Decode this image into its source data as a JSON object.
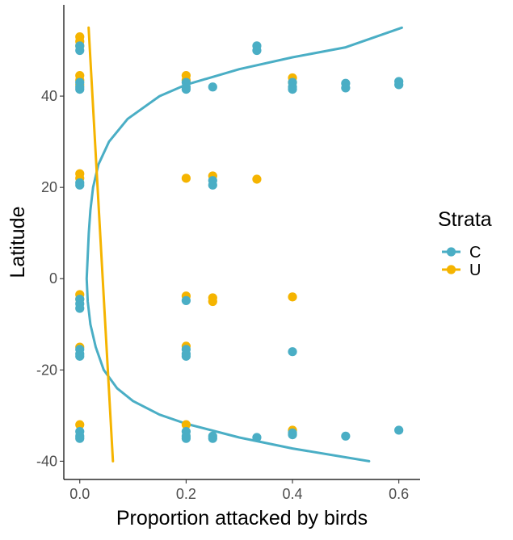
{
  "chart_data": {
    "type": "scatter",
    "xlabel": "Proportion attacked by birds",
    "ylabel": "Latitude",
    "xlim": [
      -0.03,
      0.64
    ],
    "ylim": [
      -44,
      60
    ],
    "xticks": [
      0.0,
      0.2,
      0.4,
      0.6
    ],
    "xtick_labels": [
      "0.0",
      "0.2",
      "0.4",
      "0.6"
    ],
    "yticks": [
      -40,
      -20,
      0,
      20,
      40
    ],
    "ytick_labels": [
      "-40",
      "-20",
      "0",
      "20",
      "40"
    ],
    "grid": false,
    "legend": {
      "title": "Strata",
      "placement": "right"
    },
    "series": [
      {
        "name": "C",
        "color": "#4aaec5",
        "points": [
          [
            0.0,
            50.0
          ],
          [
            0.0,
            51.0
          ],
          [
            0.0,
            43.0
          ],
          [
            0.0,
            42.0
          ],
          [
            0.0,
            41.5
          ],
          [
            0.0,
            21.0
          ],
          [
            0.0,
            20.5
          ],
          [
            0.0,
            -4.5
          ],
          [
            0.0,
            -5.5
          ],
          [
            0.0,
            -6.5
          ],
          [
            0.0,
            -15.5
          ],
          [
            0.0,
            -16.5
          ],
          [
            0.0,
            -17.0
          ],
          [
            0.0,
            -33.5
          ],
          [
            0.0,
            -34.5
          ],
          [
            0.0,
            -35.0
          ],
          [
            0.2,
            43.0
          ],
          [
            0.2,
            42.0
          ],
          [
            0.2,
            41.5
          ],
          [
            0.2,
            -4.8
          ],
          [
            0.2,
            -15.5
          ],
          [
            0.2,
            -16.5
          ],
          [
            0.2,
            -17.0
          ],
          [
            0.2,
            -33.5
          ],
          [
            0.2,
            -34.5
          ],
          [
            0.2,
            -35.0
          ],
          [
            0.25,
            42.0
          ],
          [
            0.25,
            21.5
          ],
          [
            0.25,
            20.5
          ],
          [
            0.25,
            -34.5
          ],
          [
            0.25,
            -35.0
          ],
          [
            0.333,
            51.0
          ],
          [
            0.333,
            50.0
          ],
          [
            0.333,
            -34.8
          ],
          [
            0.4,
            43.0
          ],
          [
            0.4,
            42.0
          ],
          [
            0.4,
            41.5
          ],
          [
            0.4,
            -16.0
          ],
          [
            0.4,
            -33.8
          ],
          [
            0.4,
            -34.2
          ],
          [
            0.5,
            42.8
          ],
          [
            0.5,
            41.8
          ],
          [
            0.5,
            -34.5
          ],
          [
            0.6,
            43.2
          ],
          [
            0.6,
            42.5
          ],
          [
            0.6,
            -33.2
          ]
        ],
        "fit_curve": [
          [
            0.5442,
            -40.0
          ],
          [
            0.4,
            -37.2
          ],
          [
            0.3,
            -34.8
          ],
          [
            0.2,
            -31.8
          ],
          [
            0.15,
            -29.8
          ],
          [
            0.1,
            -26.8
          ],
          [
            0.07,
            -24.0
          ],
          [
            0.045,
            -20.0
          ],
          [
            0.03,
            -15.0
          ],
          [
            0.02,
            -10.0
          ],
          [
            0.015,
            -5.0
          ],
          [
            0.013,
            0.0
          ],
          [
            0.015,
            5.0
          ],
          [
            0.017,
            10.0
          ],
          [
            0.02,
            15.0
          ],
          [
            0.025,
            20.0
          ],
          [
            0.035,
            25.0
          ],
          [
            0.055,
            30.0
          ],
          [
            0.09,
            35.0
          ],
          [
            0.15,
            40.0
          ],
          [
            0.2,
            42.5
          ],
          [
            0.3,
            45.9
          ],
          [
            0.4,
            48.5
          ],
          [
            0.5,
            50.7
          ],
          [
            0.6056,
            55.0
          ]
        ]
      },
      {
        "name": "U",
        "color": "#f5b400",
        "points": [
          [
            0.0,
            53.0
          ],
          [
            0.0,
            52.0
          ],
          [
            0.0,
            51.0
          ],
          [
            0.0,
            44.5
          ],
          [
            0.0,
            43.5
          ],
          [
            0.0,
            42.5
          ],
          [
            0.0,
            23.0
          ],
          [
            0.0,
            22.0
          ],
          [
            0.0,
            -3.5
          ],
          [
            0.0,
            -4.5
          ],
          [
            0.0,
            -15.0
          ],
          [
            0.0,
            -32.0
          ],
          [
            0.2,
            44.5
          ],
          [
            0.2,
            43.5
          ],
          [
            0.2,
            22.0
          ],
          [
            0.2,
            -3.8
          ],
          [
            0.2,
            -14.8
          ],
          [
            0.2,
            -32.0
          ],
          [
            0.25,
            22.5
          ],
          [
            0.25,
            -4.2
          ],
          [
            0.25,
            -5.0
          ],
          [
            0.333,
            21.8
          ],
          [
            0.4,
            44.0
          ],
          [
            0.4,
            43.0
          ],
          [
            0.4,
            -4.0
          ],
          [
            0.4,
            -33.2
          ]
        ],
        "fit_curve": [
          [
            0.0167,
            55.0
          ],
          [
            0.0624,
            -40.0
          ]
        ]
      }
    ]
  }
}
